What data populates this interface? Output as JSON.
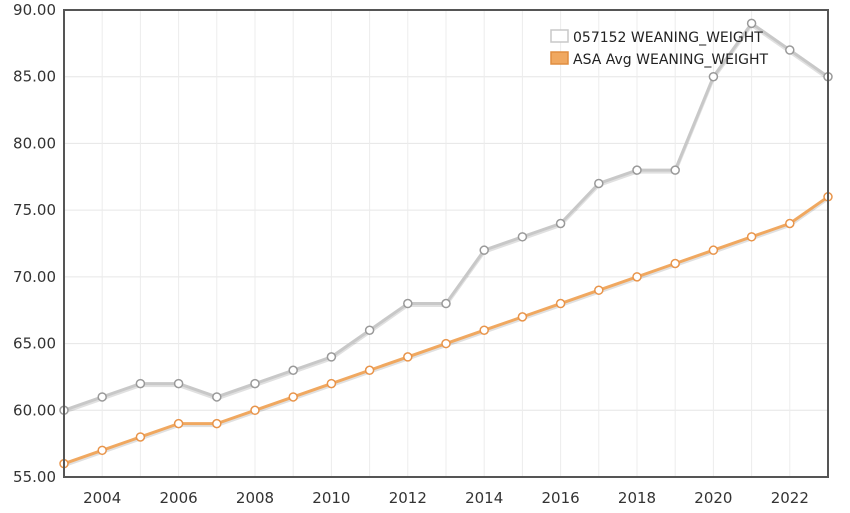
{
  "chart_data": {
    "type": "line",
    "title": "",
    "xlabel": "",
    "ylabel": "",
    "x": [
      2003,
      2004,
      2005,
      2006,
      2007,
      2008,
      2009,
      2010,
      2011,
      2012,
      2013,
      2014,
      2015,
      2016,
      2017,
      2018,
      2019,
      2020,
      2021,
      2022,
      2023
    ],
    "xlim": [
      2003,
      2023
    ],
    "ylim": [
      55,
      90
    ],
    "x_ticks": [
      "2004",
      "2006",
      "2008",
      "2010",
      "2012",
      "2014",
      "2016",
      "2018",
      "2020",
      "2022"
    ],
    "y_ticks": [
      "55.00",
      "60.00",
      "65.00",
      "70.00",
      "75.00",
      "80.00",
      "85.00",
      "90.00"
    ],
    "grid": true,
    "legend_position": "top-right",
    "series": [
      {
        "name": "057152 WEANING_WEIGHT",
        "color": "#c8c8c8",
        "values": [
          60,
          61,
          62,
          62,
          61,
          62,
          63,
          64,
          66,
          68,
          68,
          72,
          73,
          74,
          77,
          78,
          78,
          85,
          89,
          87,
          85
        ]
      },
      {
        "name": "ASA Avg WEANING_WEIGHT",
        "color": "#f0a860",
        "values": [
          56,
          57,
          58,
          59,
          59,
          60,
          61,
          62,
          63,
          64,
          65,
          66,
          67,
          68,
          69,
          70,
          71,
          72,
          73,
          74,
          76
        ]
      }
    ]
  }
}
